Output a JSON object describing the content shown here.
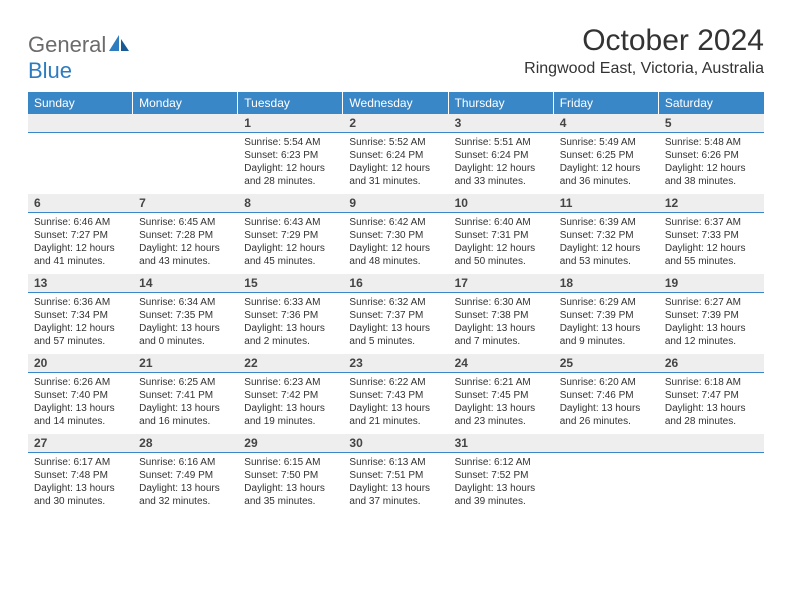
{
  "logo": {
    "word1": "General",
    "word2": "Blue"
  },
  "title": "October 2024",
  "location": "Ringwood East, Victoria, Australia",
  "colors": {
    "header_bg": "#3a87c7",
    "header_text": "#ffffff",
    "daynum_bg": "#eeeeee",
    "border": "#3a87c7",
    "text": "#333333",
    "logo_gray": "#6b6b6b",
    "logo_blue": "#2d7cc0",
    "background": "#ffffff"
  },
  "day_names": [
    "Sunday",
    "Monday",
    "Tuesday",
    "Wednesday",
    "Thursday",
    "Friday",
    "Saturday"
  ],
  "weeks": [
    [
      {
        "day": "",
        "sunrise": "",
        "sunset": "",
        "daylight": ""
      },
      {
        "day": "",
        "sunrise": "",
        "sunset": "",
        "daylight": ""
      },
      {
        "day": "1",
        "sunrise": "Sunrise: 5:54 AM",
        "sunset": "Sunset: 6:23 PM",
        "daylight": "Daylight: 12 hours and 28 minutes."
      },
      {
        "day": "2",
        "sunrise": "Sunrise: 5:52 AM",
        "sunset": "Sunset: 6:24 PM",
        "daylight": "Daylight: 12 hours and 31 minutes."
      },
      {
        "day": "3",
        "sunrise": "Sunrise: 5:51 AM",
        "sunset": "Sunset: 6:24 PM",
        "daylight": "Daylight: 12 hours and 33 minutes."
      },
      {
        "day": "4",
        "sunrise": "Sunrise: 5:49 AM",
        "sunset": "Sunset: 6:25 PM",
        "daylight": "Daylight: 12 hours and 36 minutes."
      },
      {
        "day": "5",
        "sunrise": "Sunrise: 5:48 AM",
        "sunset": "Sunset: 6:26 PM",
        "daylight": "Daylight: 12 hours and 38 minutes."
      }
    ],
    [
      {
        "day": "6",
        "sunrise": "Sunrise: 6:46 AM",
        "sunset": "Sunset: 7:27 PM",
        "daylight": "Daylight: 12 hours and 41 minutes."
      },
      {
        "day": "7",
        "sunrise": "Sunrise: 6:45 AM",
        "sunset": "Sunset: 7:28 PM",
        "daylight": "Daylight: 12 hours and 43 minutes."
      },
      {
        "day": "8",
        "sunrise": "Sunrise: 6:43 AM",
        "sunset": "Sunset: 7:29 PM",
        "daylight": "Daylight: 12 hours and 45 minutes."
      },
      {
        "day": "9",
        "sunrise": "Sunrise: 6:42 AM",
        "sunset": "Sunset: 7:30 PM",
        "daylight": "Daylight: 12 hours and 48 minutes."
      },
      {
        "day": "10",
        "sunrise": "Sunrise: 6:40 AM",
        "sunset": "Sunset: 7:31 PM",
        "daylight": "Daylight: 12 hours and 50 minutes."
      },
      {
        "day": "11",
        "sunrise": "Sunrise: 6:39 AM",
        "sunset": "Sunset: 7:32 PM",
        "daylight": "Daylight: 12 hours and 53 minutes."
      },
      {
        "day": "12",
        "sunrise": "Sunrise: 6:37 AM",
        "sunset": "Sunset: 7:33 PM",
        "daylight": "Daylight: 12 hours and 55 minutes."
      }
    ],
    [
      {
        "day": "13",
        "sunrise": "Sunrise: 6:36 AM",
        "sunset": "Sunset: 7:34 PM",
        "daylight": "Daylight: 12 hours and 57 minutes."
      },
      {
        "day": "14",
        "sunrise": "Sunrise: 6:34 AM",
        "sunset": "Sunset: 7:35 PM",
        "daylight": "Daylight: 13 hours and 0 minutes."
      },
      {
        "day": "15",
        "sunrise": "Sunrise: 6:33 AM",
        "sunset": "Sunset: 7:36 PM",
        "daylight": "Daylight: 13 hours and 2 minutes."
      },
      {
        "day": "16",
        "sunrise": "Sunrise: 6:32 AM",
        "sunset": "Sunset: 7:37 PM",
        "daylight": "Daylight: 13 hours and 5 minutes."
      },
      {
        "day": "17",
        "sunrise": "Sunrise: 6:30 AM",
        "sunset": "Sunset: 7:38 PM",
        "daylight": "Daylight: 13 hours and 7 minutes."
      },
      {
        "day": "18",
        "sunrise": "Sunrise: 6:29 AM",
        "sunset": "Sunset: 7:39 PM",
        "daylight": "Daylight: 13 hours and 9 minutes."
      },
      {
        "day": "19",
        "sunrise": "Sunrise: 6:27 AM",
        "sunset": "Sunset: 7:39 PM",
        "daylight": "Daylight: 13 hours and 12 minutes."
      }
    ],
    [
      {
        "day": "20",
        "sunrise": "Sunrise: 6:26 AM",
        "sunset": "Sunset: 7:40 PM",
        "daylight": "Daylight: 13 hours and 14 minutes."
      },
      {
        "day": "21",
        "sunrise": "Sunrise: 6:25 AM",
        "sunset": "Sunset: 7:41 PM",
        "daylight": "Daylight: 13 hours and 16 minutes."
      },
      {
        "day": "22",
        "sunrise": "Sunrise: 6:23 AM",
        "sunset": "Sunset: 7:42 PM",
        "daylight": "Daylight: 13 hours and 19 minutes."
      },
      {
        "day": "23",
        "sunrise": "Sunrise: 6:22 AM",
        "sunset": "Sunset: 7:43 PM",
        "daylight": "Daylight: 13 hours and 21 minutes."
      },
      {
        "day": "24",
        "sunrise": "Sunrise: 6:21 AM",
        "sunset": "Sunset: 7:45 PM",
        "daylight": "Daylight: 13 hours and 23 minutes."
      },
      {
        "day": "25",
        "sunrise": "Sunrise: 6:20 AM",
        "sunset": "Sunset: 7:46 PM",
        "daylight": "Daylight: 13 hours and 26 minutes."
      },
      {
        "day": "26",
        "sunrise": "Sunrise: 6:18 AM",
        "sunset": "Sunset: 7:47 PM",
        "daylight": "Daylight: 13 hours and 28 minutes."
      }
    ],
    [
      {
        "day": "27",
        "sunrise": "Sunrise: 6:17 AM",
        "sunset": "Sunset: 7:48 PM",
        "daylight": "Daylight: 13 hours and 30 minutes."
      },
      {
        "day": "28",
        "sunrise": "Sunrise: 6:16 AM",
        "sunset": "Sunset: 7:49 PM",
        "daylight": "Daylight: 13 hours and 32 minutes."
      },
      {
        "day": "29",
        "sunrise": "Sunrise: 6:15 AM",
        "sunset": "Sunset: 7:50 PM",
        "daylight": "Daylight: 13 hours and 35 minutes."
      },
      {
        "day": "30",
        "sunrise": "Sunrise: 6:13 AM",
        "sunset": "Sunset: 7:51 PM",
        "daylight": "Daylight: 13 hours and 37 minutes."
      },
      {
        "day": "31",
        "sunrise": "Sunrise: 6:12 AM",
        "sunset": "Sunset: 7:52 PM",
        "daylight": "Daylight: 13 hours and 39 minutes."
      },
      {
        "day": "",
        "sunrise": "",
        "sunset": "",
        "daylight": ""
      },
      {
        "day": "",
        "sunrise": "",
        "sunset": "",
        "daylight": ""
      }
    ]
  ]
}
